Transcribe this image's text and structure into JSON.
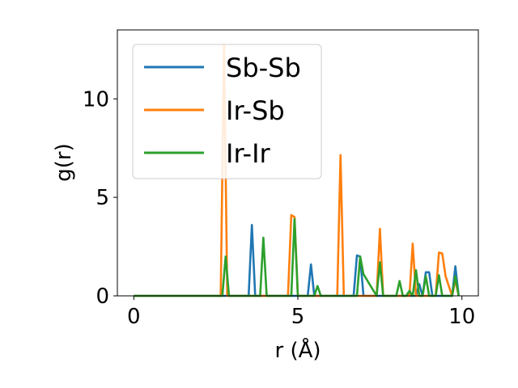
{
  "chart_data": {
    "type": "line",
    "xlabel": "r (Å)",
    "ylabel": "g(r)",
    "xlim": [
      -0.5,
      10.5
    ],
    "ylim": [
      0,
      13.5
    ],
    "xticks": [
      0,
      5,
      10
    ],
    "yticks": [
      0,
      5,
      10
    ],
    "xtick_labels": [
      "0",
      "5",
      "10"
    ],
    "ytick_labels": [
      "0",
      "5",
      "10"
    ],
    "grid": false,
    "legend_position": "upper-left",
    "series": [
      {
        "name": "Sb-Sb",
        "color": "#1f77b4",
        "x": [
          0,
          3.5,
          3.6,
          3.7,
          5.3,
          5.4,
          5.5,
          6.7,
          6.8,
          6.9,
          7.0,
          8.6,
          8.7,
          8.8,
          8.9,
          9.0,
          9.1,
          9.7,
          9.8,
          9.9
        ],
        "y": [
          0,
          0,
          3.6,
          0,
          0,
          1.6,
          0,
          0,
          2.05,
          2.0,
          0,
          0,
          0.6,
          0,
          1.2,
          1.2,
          0,
          0,
          1.5,
          0
        ]
      },
      {
        "name": "Ir-Sb",
        "color": "#ff7f0e",
        "x": [
          0,
          2.65,
          2.75,
          2.85,
          4.7,
          4.8,
          4.9,
          5.0,
          6.2,
          6.3,
          6.4,
          7.4,
          7.5,
          7.6,
          8.4,
          8.5,
          8.6,
          9.2,
          9.3,
          9.4,
          9.5,
          9.6,
          9.7,
          9.8,
          9.9
        ],
        "y": [
          0,
          0,
          12.7,
          0,
          0,
          4.1,
          4.0,
          0,
          0,
          7.15,
          0,
          0,
          3.4,
          0,
          0,
          2.65,
          0,
          0,
          2.2,
          2.15,
          1.0,
          0.5,
          0,
          0.8,
          0
        ]
      },
      {
        "name": "Ir-Ir",
        "color": "#2ca02c",
        "x": [
          0,
          2.7,
          2.8,
          2.9,
          3.85,
          3.95,
          4.05,
          4.8,
          4.9,
          5.0,
          5.5,
          5.6,
          5.7,
          6.8,
          6.9,
          7.0,
          7.4,
          7.5,
          7.6,
          8.0,
          8.1,
          8.2,
          8.3,
          8.4,
          8.5,
          8.6,
          8.7,
          8.8,
          8.9,
          9.0,
          9.1,
          9.2,
          9.3,
          9.4,
          9.5,
          9.6,
          9.7,
          9.8,
          9.9
        ],
        "y": [
          0,
          0,
          2.0,
          0,
          0,
          2.95,
          0,
          0,
          3.9,
          0,
          0,
          0.5,
          0,
          0,
          2.0,
          1.1,
          0,
          1.7,
          0,
          0,
          0.75,
          0,
          0,
          0.25,
          0,
          1.3,
          0,
          0,
          1.0,
          0,
          0,
          0,
          1.05,
          0,
          0,
          0,
          0,
          1.0,
          0
        ]
      }
    ]
  }
}
